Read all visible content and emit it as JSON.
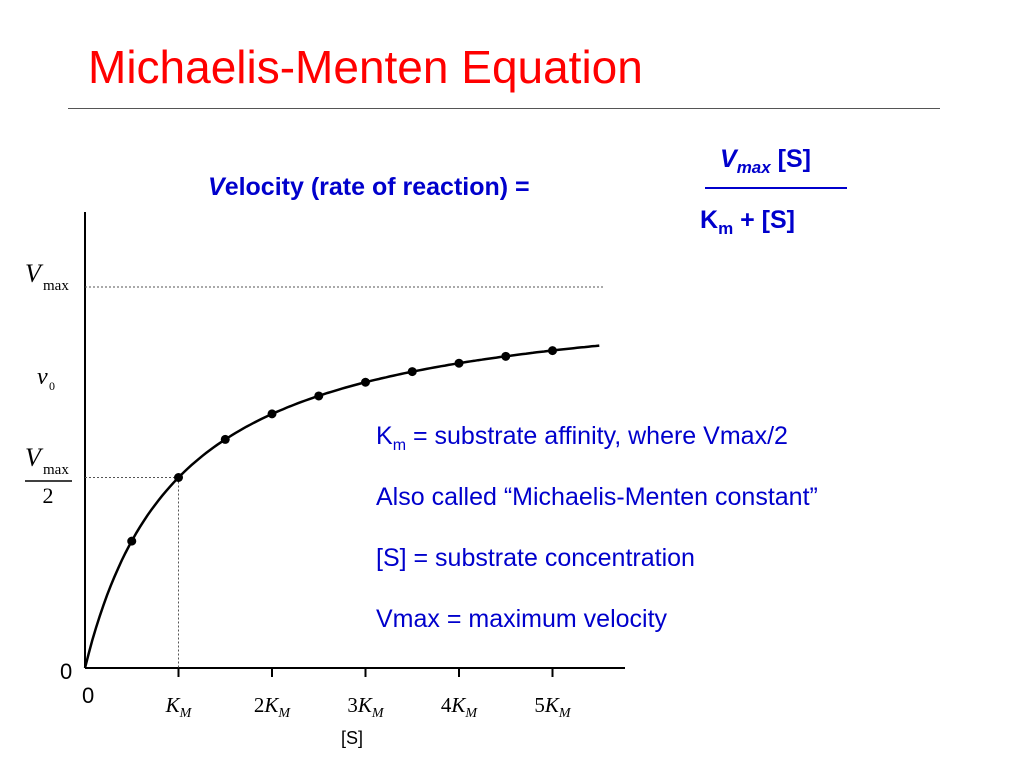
{
  "title": "Michaelis-Menten Equation",
  "equation": {
    "lhs_first_letter": "V",
    "lhs_rest": "elocity (rate of reaction)  =",
    "numerator_v": "V",
    "numerator_sub": "max",
    "numerator_rest": " [S]",
    "denominator_k": "K",
    "denominator_sub": "m",
    "denominator_rest": "  +  [S]"
  },
  "notes": {
    "km_k": "K",
    "km_sub": "m",
    "km_rest": "  =  substrate affinity, where Vmax/2",
    "also_called": "Also called “Michaelis-Menten constant”",
    "substrate": "[S] = substrate concentration",
    "vmax": "Vmax = maximum velocity"
  },
  "graph": {
    "y_label_vmax_v": "V",
    "y_label_vmax_sub": "max",
    "y_label_v0_v": "v",
    "y_label_v0_sub": "0",
    "y_label_half_v": "V",
    "y_label_half_sub": "max",
    "y_label_half_den": "2",
    "y_zero": "0",
    "x_zero": "0",
    "x_ticks": [
      "K",
      "2K",
      "3K",
      "4K",
      "5K"
    ],
    "x_tick_sub": "M",
    "x_axis_label": "[S]"
  },
  "chart_data": {
    "type": "scatter",
    "x_unit": "K_M",
    "y_unit": "Vmax",
    "points": [
      {
        "x": 0.5,
        "y": 0.333
      },
      {
        "x": 1.0,
        "y": 0.5
      },
      {
        "x": 1.5,
        "y": 0.6
      },
      {
        "x": 2.0,
        "y": 0.667
      },
      {
        "x": 2.5,
        "y": 0.714
      },
      {
        "x": 3.0,
        "y": 0.75
      },
      {
        "x": 3.5,
        "y": 0.778
      },
      {
        "x": 4.0,
        "y": 0.8
      },
      {
        "x": 4.5,
        "y": 0.818
      },
      {
        "x": 5.0,
        "y": 0.833
      }
    ],
    "xlim": [
      0,
      5.5
    ],
    "ylim": [
      0,
      1.0
    ],
    "curve": "v = Vmax[S]/(Km+[S])"
  },
  "colors": {
    "title": "#ff0000",
    "text": "#0000cc",
    "graph": "#000000"
  }
}
